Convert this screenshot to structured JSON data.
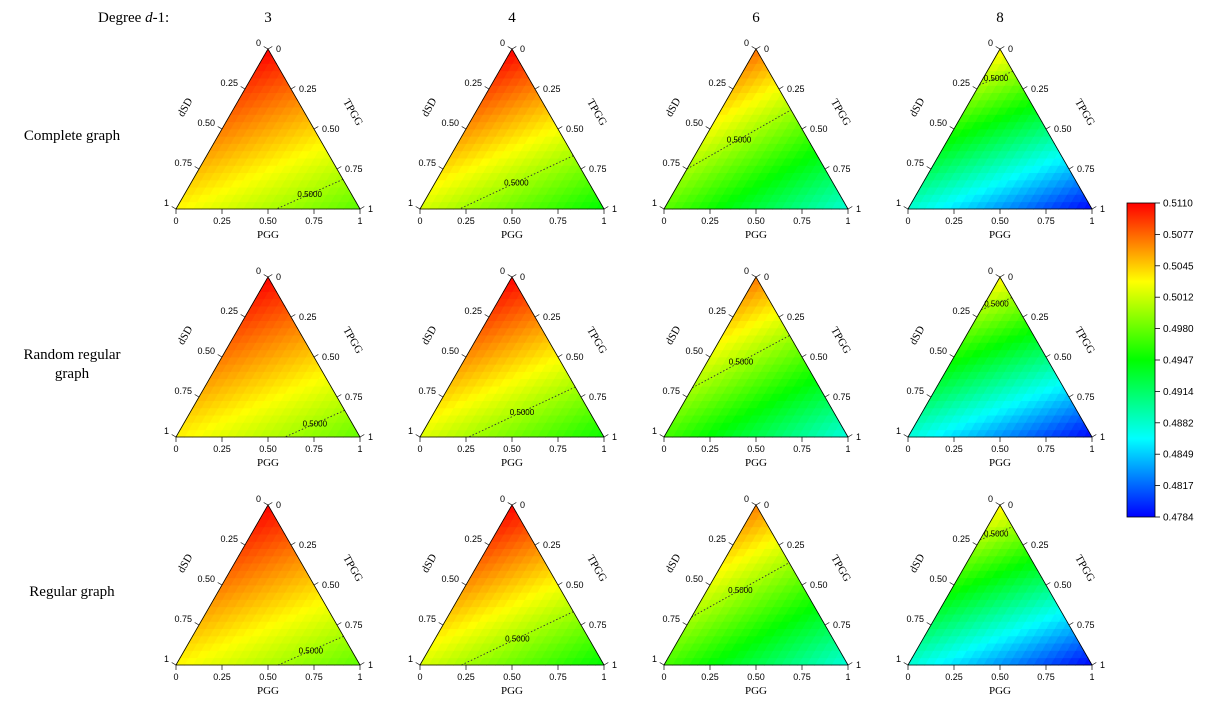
{
  "header": {
    "degree_label_prefix": "Degree ",
    "degree_label_var": "d",
    "degree_label_suffix": "-1:"
  },
  "columns": [
    "3",
    "4",
    "6",
    "8"
  ],
  "rows": [
    {
      "label_lines": [
        "Complete graph"
      ]
    },
    {
      "label_lines": [
        "Random regular",
        "graph"
      ]
    },
    {
      "label_lines": [
        "Regular graph"
      ]
    }
  ],
  "axes": {
    "bottom_name": "PGG",
    "left_name": "dSD",
    "right_name": "TPGG",
    "bottom_ticks": [
      "0",
      "0.25",
      "0.50",
      "0.75",
      "1"
    ],
    "left_ticks": [
      "1",
      "0.75",
      "0.50",
      "0.25",
      "0"
    ],
    "right_ticks": [
      "1",
      "0.75",
      "0.50",
      "0.25",
      "0"
    ]
  },
  "colors": {
    "scale": [
      "#0000ff",
      "#00ffff",
      "#00ff00",
      "#ffff00",
      "#ff0000"
    ]
  },
  "chart_data": {
    "type": "heatmap",
    "subtype": "ternary",
    "colorbar": {
      "min": 0.4784,
      "max": 0.511,
      "tick_labels": [
        "0.5110",
        "0.5077",
        "0.5045",
        "0.5012",
        "0.4980",
        "0.4947",
        "0.4914",
        "0.4882",
        "0.4849",
        "0.4817",
        "0.4784"
      ]
    },
    "contour_level": 0.5,
    "contour_label": "0.5000",
    "panels": [
      {
        "row": 0,
        "col": 0,
        "top": 0.511,
        "left": 0.503,
        "right": 0.4975
      },
      {
        "row": 0,
        "col": 1,
        "top": 0.511,
        "left": 0.5015,
        "right": 0.4945
      },
      {
        "row": 0,
        "col": 2,
        "top": 0.5075,
        "left": 0.4975,
        "right": 0.4878
      },
      {
        "row": 0,
        "col": 3,
        "top": 0.5035,
        "left": 0.488,
        "right": 0.4784
      },
      {
        "row": 1,
        "col": 0,
        "top": 0.511,
        "left": 0.5032,
        "right": 0.4978
      },
      {
        "row": 1,
        "col": 1,
        "top": 0.511,
        "left": 0.5018,
        "right": 0.495
      },
      {
        "row": 1,
        "col": 2,
        "top": 0.5072,
        "left": 0.4968,
        "right": 0.4875
      },
      {
        "row": 1,
        "col": 3,
        "top": 0.5032,
        "left": 0.4876,
        "right": 0.4784
      },
      {
        "row": 2,
        "col": 0,
        "top": 0.511,
        "left": 0.503,
        "right": 0.4976
      },
      {
        "row": 2,
        "col": 1,
        "top": 0.511,
        "left": 0.5016,
        "right": 0.4945
      },
      {
        "row": 2,
        "col": 2,
        "top": 0.507,
        "left": 0.497,
        "right": 0.4876
      },
      {
        "row": 2,
        "col": 3,
        "top": 0.5034,
        "left": 0.4878,
        "right": 0.4784
      }
    ]
  }
}
